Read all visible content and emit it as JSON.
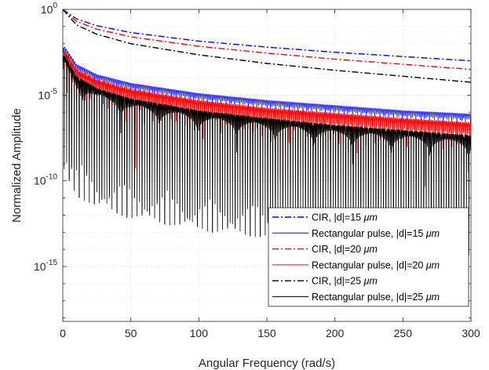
{
  "chart_data": {
    "type": "line",
    "title": "",
    "xlabel": "Angular Frequency (rad/s)",
    "ylabel": "Normalized Amplitude",
    "xlim": [
      0,
      300
    ],
    "ylim_log10": [
      -18.2,
      0
    ],
    "yscale": "log",
    "grid": true,
    "legend_position": "bottom-right",
    "x_ticks": [
      0,
      50,
      100,
      150,
      200,
      250,
      300
    ],
    "x_tick_labels": [
      "0",
      "50",
      "100",
      "150",
      "200",
      "250",
      "300"
    ],
    "y_ticks": [
      {
        "value": 1,
        "base": "10",
        "exp": "0"
      },
      {
        "value": 1e-05,
        "base": "10",
        "exp": "-5"
      },
      {
        "value": 1e-10,
        "base": "10",
        "exp": "-10"
      },
      {
        "value": 1e-15,
        "base": "10",
        "exp": "-15"
      }
    ],
    "series": [
      {
        "name": "CIR, |d|=15 μm",
        "label_prefix": "CIR, |d|=15 ",
        "label_unit": "μm",
        "color": "#0000ff",
        "style": "dashdot",
        "kind": "cir",
        "d_um": 15,
        "points": [
          [
            0,
            0
          ],
          [
            10,
            -0.55
          ],
          [
            25,
            -0.95
          ],
          [
            50,
            -1.35
          ],
          [
            100,
            -1.85
          ],
          [
            150,
            -2.2
          ],
          [
            200,
            -2.5
          ],
          [
            250,
            -2.75
          ],
          [
            300,
            -3.0
          ]
        ]
      },
      {
        "name": "Rectangular pulse, |d|=15 μm",
        "label_prefix": "Rectangular pulse, |d|=15 ",
        "label_unit": "μm",
        "color": "#0000ff",
        "style": "solid",
        "kind": "pulse",
        "d_um": 15,
        "env_points": [
          [
            1.5,
            -2.2
          ],
          [
            10,
            -3.2
          ],
          [
            25,
            -3.8
          ],
          [
            50,
            -4.3
          ],
          [
            100,
            -4.9
          ],
          [
            150,
            -5.3
          ],
          [
            200,
            -5.6
          ],
          [
            250,
            -5.9
          ],
          [
            300,
            -6.1
          ]
        ]
      },
      {
        "name": "CIR, |d|=20 μm",
        "label_prefix": "CIR, |d|=20 ",
        "label_unit": "μm",
        "color": "#ff0000",
        "style": "dashdot",
        "kind": "cir",
        "d_um": 20,
        "points": [
          [
            0,
            0
          ],
          [
            10,
            -0.7
          ],
          [
            25,
            -1.15
          ],
          [
            50,
            -1.6
          ],
          [
            100,
            -2.15
          ],
          [
            150,
            -2.55
          ],
          [
            200,
            -2.9
          ],
          [
            250,
            -3.2
          ],
          [
            300,
            -3.5
          ]
        ]
      },
      {
        "name": "Rectangular pulse, |d|=20 μm",
        "label_prefix": "Rectangular pulse, |d|=20 ",
        "label_unit": "μm",
        "color": "#ff0000",
        "style": "solid",
        "kind": "pulse",
        "d_um": 20,
        "env_points": [
          [
            1.5,
            -2.4
          ],
          [
            10,
            -3.5
          ],
          [
            25,
            -4.1
          ],
          [
            50,
            -4.65
          ],
          [
            100,
            -5.3
          ],
          [
            150,
            -5.75
          ],
          [
            200,
            -6.05
          ],
          [
            250,
            -6.35
          ],
          [
            300,
            -6.6
          ]
        ]
      },
      {
        "name": "CIR, |d|=25 μm",
        "label_prefix": "CIR, |d|=25 ",
        "label_unit": "μm",
        "color": "#000000",
        "style": "dashdot",
        "kind": "cir",
        "d_um": 25,
        "points": [
          [
            0,
            0
          ],
          [
            10,
            -0.9
          ],
          [
            25,
            -1.45
          ],
          [
            50,
            -2.0
          ],
          [
            100,
            -2.65
          ],
          [
            150,
            -3.15
          ],
          [
            200,
            -3.55
          ],
          [
            250,
            -3.9
          ],
          [
            300,
            -4.25
          ]
        ]
      },
      {
        "name": "Rectangular pulse, |d|=25 μm",
        "label_prefix": "Rectangular pulse, |d|=25 ",
        "label_unit": "μm",
        "color": "#000000",
        "style": "solid",
        "kind": "pulse",
        "d_um": 25,
        "env_points": [
          [
            1.5,
            -2.7
          ],
          [
            10,
            -3.9
          ],
          [
            25,
            -4.6
          ],
          [
            50,
            -5.2
          ],
          [
            100,
            -5.9
          ],
          [
            150,
            -6.35
          ],
          [
            200,
            -6.75
          ],
          [
            250,
            -7.05
          ],
          [
            300,
            -7.35
          ]
        ]
      }
    ]
  }
}
